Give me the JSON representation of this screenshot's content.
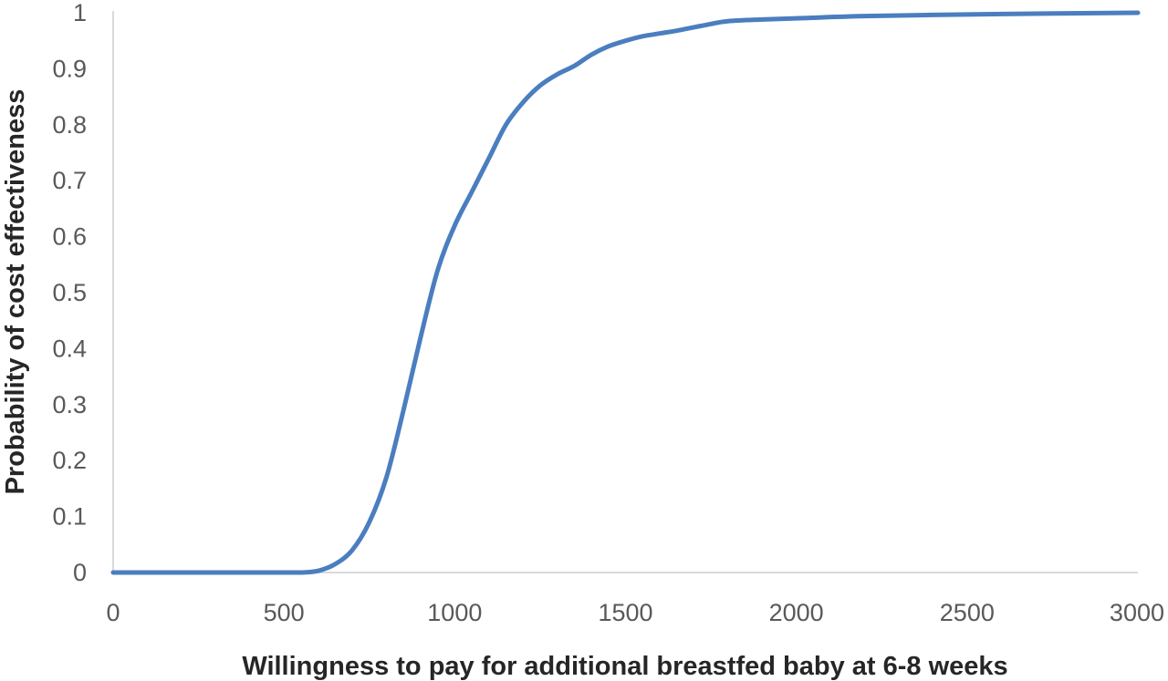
{
  "chart_data": {
    "type": "line",
    "title": "",
    "xlabel": "Willingness to pay for additional breastfed baby at 6-8 weeks",
    "ylabel": "Probability of cost effectiveness",
    "xlim": [
      0,
      3000
    ],
    "ylim": [
      0,
      1
    ],
    "x_ticks": [
      "0",
      "500",
      "1000",
      "1500",
      "2000",
      "2500",
      "3000"
    ],
    "y_ticks": [
      "0",
      "0.1",
      "0.2",
      "0.3",
      "0.4",
      "0.5",
      "0.6",
      "0.7",
      "0.8",
      "0.9",
      "1"
    ],
    "grid": false,
    "legend": "none",
    "series_color": "#4a7ebf",
    "series": [
      {
        "x": [
          0,
          100,
          200,
          300,
          400,
          500,
          550,
          600,
          650,
          700,
          750,
          800,
          850,
          900,
          950,
          1000,
          1050,
          1100,
          1150,
          1200,
          1250,
          1300,
          1350,
          1400,
          1450,
          1500,
          1550,
          1600,
          1650,
          1700,
          1750,
          1800,
          1900,
          2000,
          2200,
          2500,
          2800,
          3000
        ],
        "y": [
          0,
          0,
          0,
          0,
          0,
          0,
          0,
          0.003,
          0.015,
          0.04,
          0.09,
          0.17,
          0.29,
          0.42,
          0.54,
          0.62,
          0.68,
          0.74,
          0.8,
          0.84,
          0.87,
          0.89,
          0.905,
          0.925,
          0.94,
          0.95,
          0.958,
          0.963,
          0.968,
          0.974,
          0.98,
          0.985,
          0.988,
          0.99,
          0.994,
          0.997,
          0.999,
          1
        ]
      }
    ]
  }
}
